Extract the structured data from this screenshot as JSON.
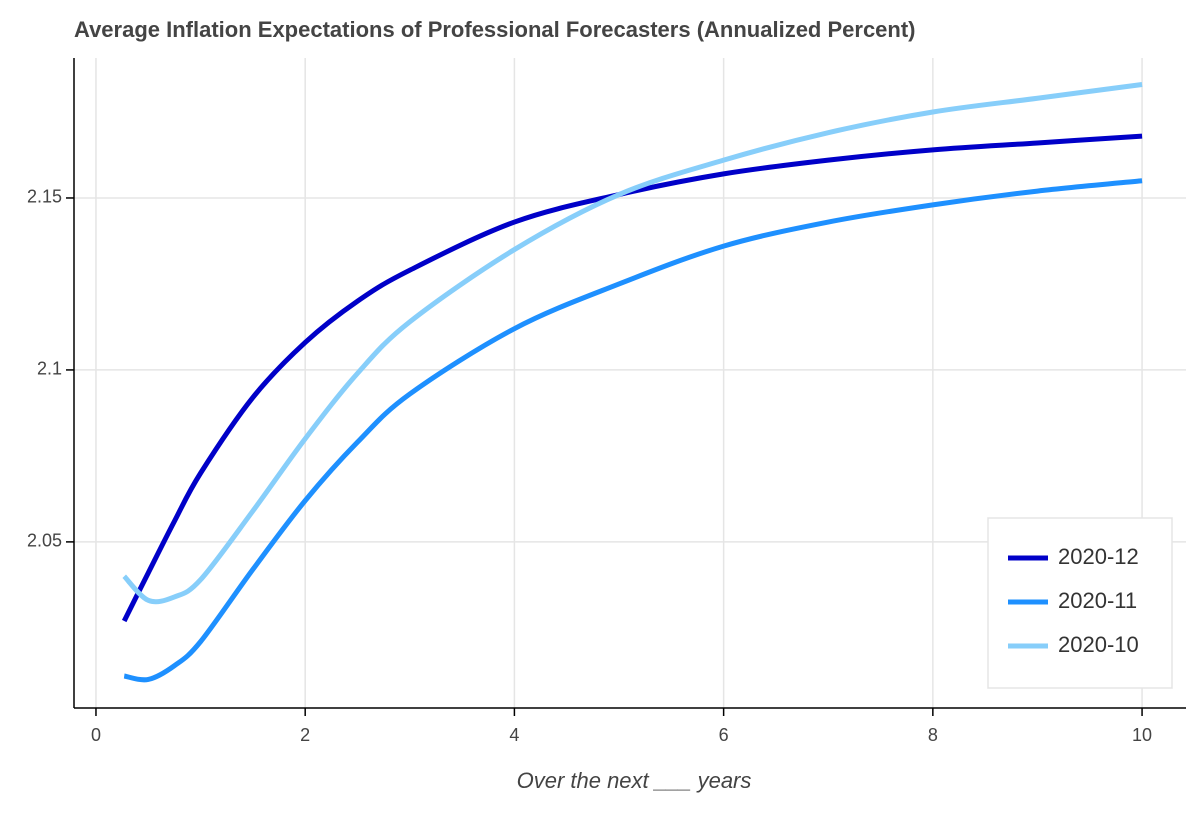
{
  "chart_data": {
    "type": "line",
    "title": "Average Inflation Expectations of Professional Forecasters (Annualized Percent)",
    "x_label": "Over the next ___ years",
    "x": [
      0.27,
      0.5,
      0.75,
      1,
      1.5,
      2,
      2.5,
      3,
      4,
      5,
      6,
      7,
      8,
      9,
      10
    ],
    "series": [
      {
        "name": "2020-12",
        "color": "#0000c8",
        "values": [
          2.027,
          2.041,
          2.056,
          2.07,
          2.092,
          2.108,
          2.12,
          2.129,
          2.143,
          2.151,
          2.157,
          2.161,
          2.164,
          2.166,
          2.168
        ]
      },
      {
        "name": "2020-11",
        "color": "#1e90ff",
        "values": [
          2.011,
          2.01,
          2.014,
          2.021,
          2.042,
          2.062,
          2.079,
          2.093,
          2.112,
          2.125,
          2.136,
          2.143,
          2.148,
          2.152,
          2.155
        ]
      },
      {
        "name": "2020-10",
        "color": "#87cefa",
        "values": [
          2.04,
          2.033,
          2.034,
          2.039,
          2.059,
          2.08,
          2.099,
          2.114,
          2.135,
          2.151,
          2.161,
          2.169,
          2.175,
          2.179,
          2.183
        ]
      }
    ],
    "xlim": [
      -0.21,
      10.42
    ],
    "xticks": [
      0,
      2,
      4,
      6,
      8,
      10
    ],
    "ylim": [
      2.0017,
      2.1907
    ],
    "yticks": [
      2.05,
      2.1,
      2.15
    ],
    "grid": true,
    "legend": "bottom-right"
  }
}
